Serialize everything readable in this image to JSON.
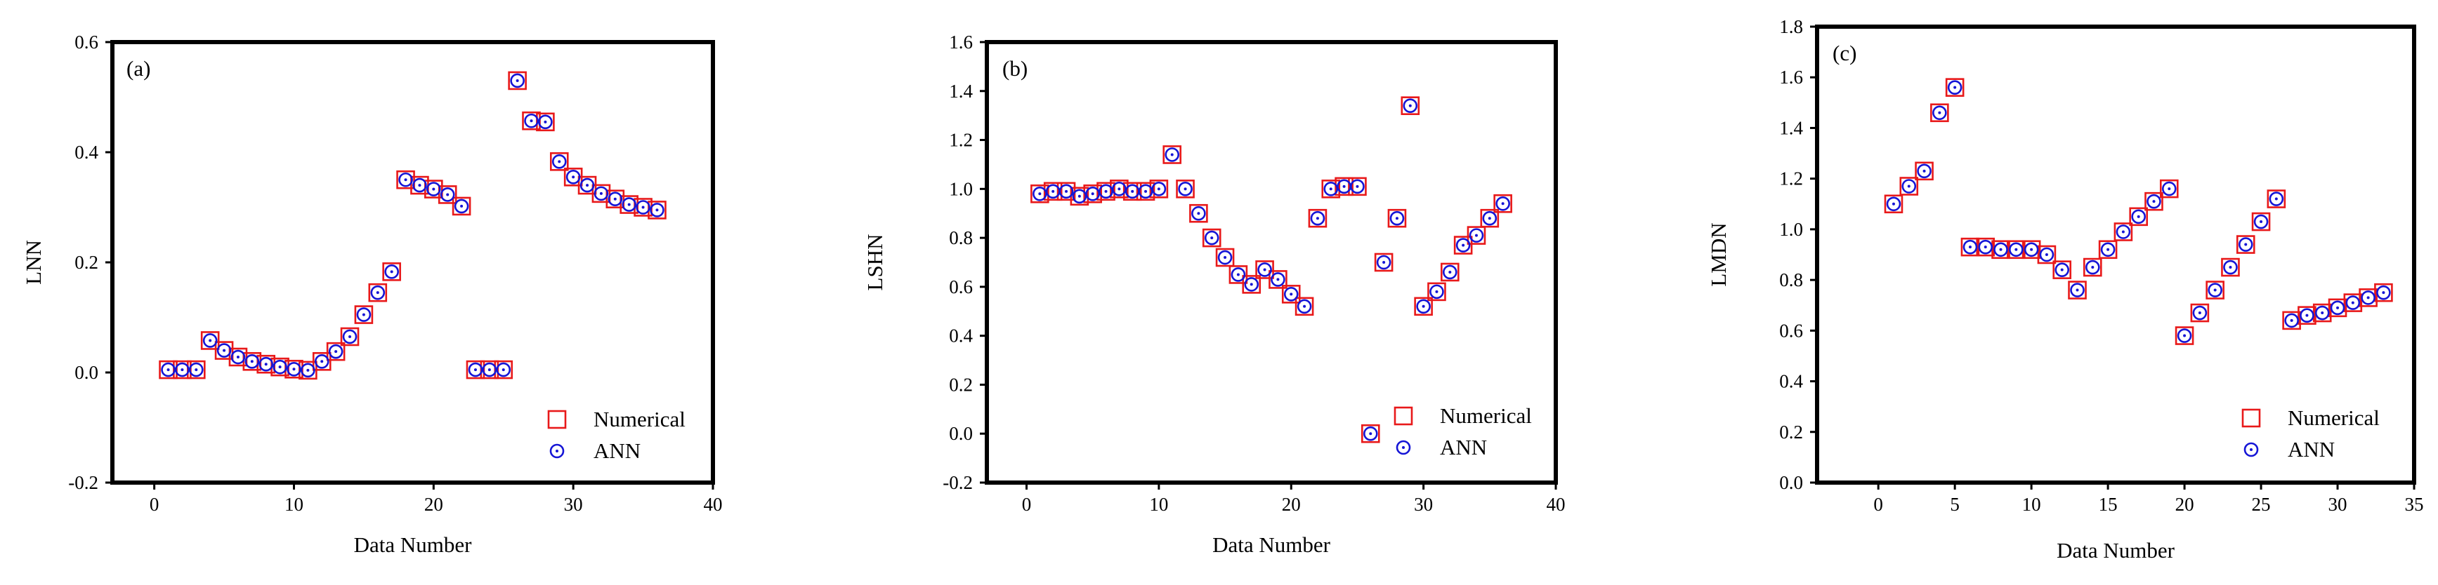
{
  "colors": {
    "numerical": "#e8191a",
    "ann": "#1515d6",
    "axis": "#000000"
  },
  "legend": {
    "numerical": "Numerical",
    "ann": "ANN",
    "placement": "bottom-right"
  },
  "chart_data": [
    {
      "type": "scatter",
      "panel_label": "(a)",
      "xlabel": "Data Number",
      "ylabel": "LNN",
      "xlim": [
        -3,
        40
      ],
      "ylim": [
        -0.2,
        0.6
      ],
      "xticks": [
        0,
        10,
        20,
        30,
        40
      ],
      "yticks": [
        -0.2,
        0.0,
        0.2,
        0.4,
        0.6
      ],
      "ytick_labels": [
        "-0.2",
        "0.0",
        "0.2",
        "0.4",
        "0.6"
      ],
      "x": [
        1,
        2,
        3,
        4,
        5,
        6,
        7,
        8,
        9,
        10,
        11,
        12,
        13,
        14,
        15,
        16,
        17,
        18,
        19,
        20,
        21,
        22,
        23,
        24,
        25,
        26,
        27,
        28,
        29,
        30,
        31,
        32,
        33,
        34,
        35,
        36
      ],
      "series": [
        {
          "name": "Numerical",
          "marker": "open-square",
          "values": [
            0.005,
            0.005,
            0.005,
            0.058,
            0.04,
            0.028,
            0.02,
            0.015,
            0.01,
            0.006,
            0.004,
            0.02,
            0.038,
            0.065,
            0.105,
            0.145,
            0.183,
            0.35,
            0.34,
            0.333,
            0.323,
            0.302,
            0.005,
            0.005,
            0.005,
            0.53,
            0.457,
            0.455,
            0.383,
            0.355,
            0.34,
            0.325,
            0.315,
            0.305,
            0.3,
            0.295
          ]
        },
        {
          "name": "ANN",
          "marker": "open-circle-dot",
          "values": [
            0.005,
            0.005,
            0.005,
            0.058,
            0.04,
            0.028,
            0.02,
            0.015,
            0.01,
            0.006,
            0.004,
            0.02,
            0.038,
            0.065,
            0.105,
            0.145,
            0.183,
            0.35,
            0.34,
            0.333,
            0.323,
            0.302,
            0.005,
            0.005,
            0.005,
            0.53,
            0.457,
            0.455,
            0.383,
            0.355,
            0.34,
            0.325,
            0.315,
            0.305,
            0.3,
            0.295
          ]
        }
      ]
    },
    {
      "type": "scatter",
      "panel_label": "(b)",
      "xlabel": "Data Number",
      "ylabel": "LSHN",
      "xlim": [
        -3,
        40
      ],
      "ylim": [
        -0.2,
        1.6
      ],
      "xticks": [
        0,
        10,
        20,
        30,
        40
      ],
      "yticks": [
        -0.2,
        0.0,
        0.2,
        0.4,
        0.6,
        0.8,
        1.0,
        1.2,
        1.4,
        1.6
      ],
      "ytick_labels": [
        "-0.2",
        "0.0",
        "0.2",
        "0.4",
        "0.6",
        "0.8",
        "1.0",
        "1.2",
        "1.4",
        "1.6"
      ],
      "x": [
        1,
        2,
        3,
        4,
        5,
        6,
        7,
        8,
        9,
        10,
        11,
        12,
        13,
        14,
        15,
        16,
        17,
        18,
        19,
        20,
        21,
        22,
        23,
        24,
        25,
        26,
        27,
        28,
        29,
        30,
        31,
        32,
        33,
        34,
        35,
        36
      ],
      "series": [
        {
          "name": "Numerical",
          "marker": "open-square",
          "values": [
            0.98,
            0.99,
            0.99,
            0.97,
            0.98,
            0.99,
            1.0,
            0.99,
            0.99,
            1.0,
            1.14,
            1.0,
            0.9,
            0.8,
            0.72,
            0.65,
            0.61,
            0.67,
            0.63,
            0.57,
            0.52,
            0.88,
            1.0,
            1.01,
            1.01,
            0.0,
            0.7,
            0.88,
            1.34,
            0.52,
            0.58,
            0.66,
            0.77,
            0.81,
            0.88,
            0.94
          ]
        },
        {
          "name": "ANN",
          "marker": "open-circle-dot",
          "values": [
            0.98,
            0.99,
            0.99,
            0.97,
            0.98,
            0.99,
            1.0,
            0.99,
            0.99,
            1.0,
            1.14,
            1.0,
            0.9,
            0.8,
            0.72,
            0.65,
            0.61,
            0.67,
            0.63,
            0.57,
            0.52,
            0.88,
            1.0,
            1.01,
            1.01,
            0.0,
            0.7,
            0.88,
            1.34,
            0.52,
            0.58,
            0.66,
            0.77,
            0.81,
            0.88,
            0.94
          ]
        }
      ]
    },
    {
      "type": "scatter",
      "panel_label": "(c)",
      "xlabel": "Data Number",
      "ylabel": "LMDN",
      "xlim": [
        -4,
        35
      ],
      "ylim": [
        0.0,
        1.8
      ],
      "xticks": [
        0,
        5,
        10,
        15,
        20,
        25,
        30,
        35
      ],
      "yticks": [
        0.0,
        0.2,
        0.4,
        0.6,
        0.8,
        1.0,
        1.2,
        1.4,
        1.6,
        1.8
      ],
      "ytick_labels": [
        "0.0",
        "0.2",
        "0.4",
        "0.6",
        "0.8",
        "1.0",
        "1.2",
        "1.4",
        "1.6",
        "1.8"
      ],
      "x": [
        1,
        2,
        3,
        4,
        5,
        6,
        7,
        8,
        9,
        10,
        11,
        12,
        13,
        14,
        15,
        16,
        17,
        18,
        19,
        20,
        21,
        22,
        23,
        24,
        25,
        26,
        27,
        28,
        29,
        30,
        31,
        32,
        33
      ],
      "series": [
        {
          "name": "Numerical",
          "marker": "open-square",
          "values": [
            1.1,
            1.17,
            1.23,
            1.46,
            1.56,
            0.93,
            0.93,
            0.92,
            0.92,
            0.92,
            0.9,
            0.84,
            0.76,
            0.85,
            0.92,
            0.99,
            1.05,
            1.11,
            1.16,
            0.58,
            0.67,
            0.76,
            0.85,
            0.94,
            1.03,
            1.12,
            0.64,
            0.66,
            0.67,
            0.69,
            0.71,
            0.73,
            0.75
          ]
        },
        {
          "name": "ANN",
          "marker": "open-circle-dot",
          "values": [
            1.1,
            1.17,
            1.23,
            1.46,
            1.56,
            0.93,
            0.93,
            0.92,
            0.92,
            0.92,
            0.9,
            0.84,
            0.76,
            0.85,
            0.92,
            0.99,
            1.05,
            1.11,
            1.16,
            0.58,
            0.67,
            0.76,
            0.85,
            0.94,
            1.03,
            1.12,
            0.64,
            0.66,
            0.67,
            0.69,
            0.71,
            0.73,
            0.75
          ]
        }
      ]
    }
  ]
}
